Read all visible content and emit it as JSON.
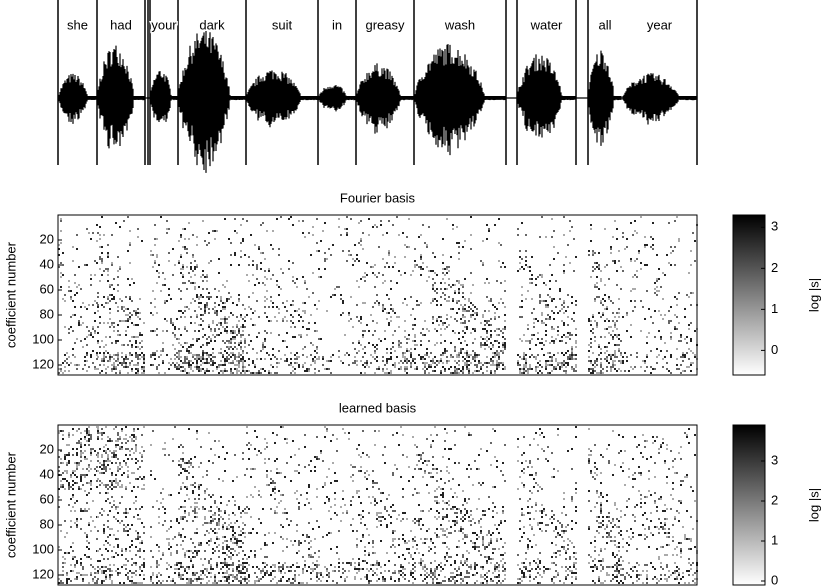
{
  "waveform": {
    "words": [
      "she",
      "had",
      "your",
      "dark",
      "suit",
      "in",
      "greasy",
      "wash",
      "water",
      "all",
      "year"
    ]
  },
  "chart_data": [
    {
      "type": "heatmap",
      "title": "Fourier basis",
      "ylabel": "coefficient number",
      "ylim": [
        0,
        128
      ],
      "yticks": [
        20,
        40,
        60,
        80,
        100,
        120
      ],
      "colorbar": {
        "label": "log |s|",
        "ylim": [
          -0.6,
          3.3
        ],
        "yticks": [
          0,
          1,
          2,
          3
        ]
      }
    },
    {
      "type": "heatmap",
      "title": "learned basis",
      "ylabel": "coefficient number",
      "ylim": [
        0,
        128
      ],
      "yticks": [
        20,
        40,
        60,
        80,
        100,
        120
      ],
      "colorbar": {
        "label": "log |s|",
        "ylim": [
          -0.1,
          3.9
        ],
        "yticks": [
          0,
          1,
          2,
          3
        ]
      }
    }
  ]
}
